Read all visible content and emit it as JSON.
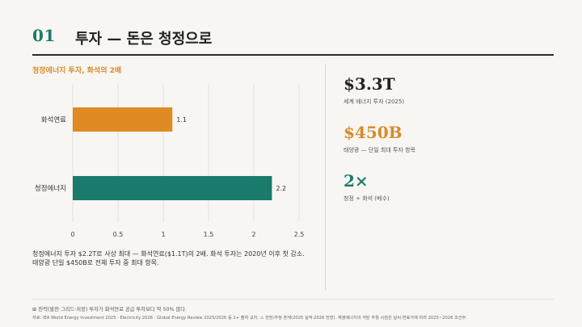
{
  "header": {
    "number": "01",
    "title": "투자 — 돈은 청정으로"
  },
  "chart_data": {
    "type": "bar",
    "orientation": "horizontal",
    "title": "청정에너지 투자, 화석의 2배",
    "categories": [
      "화석연료",
      "청정에너지"
    ],
    "values": [
      1.1,
      2.2
    ],
    "value_labels": [
      "1.1",
      "2.2"
    ],
    "colors": [
      "#e08a23",
      "#1a7a6c"
    ],
    "xlim": [
      0,
      2.5
    ],
    "xticks": [
      0,
      0.5,
      1,
      1.5,
      2,
      2.5
    ],
    "xtick_labels": [
      "0",
      "0.5",
      "1",
      "1.5",
      "2",
      "2.5"
    ],
    "grid": true,
    "legend": "none"
  },
  "caption": [
    "청정에너지 투자 $2.2T로 사상 최대 — 화석연료($1.1T)의 2배. 화석 투자는 2020년 이후 첫 감소.",
    "태양광 단일 $450B로 전체 투자 중 최대 항목."
  ],
  "stats": [
    {
      "value": "$3.3T",
      "label": "세계 에너지 투자 (2025)",
      "color": "#222222"
    },
    {
      "value": "$450B",
      "label": "태양광 — 단일 최대 투자 항목",
      "color": "#d98a2b"
    },
    {
      "value": "2×",
      "label": "청정 ÷ 화석 (배수)",
      "color": "#1d7a6c"
    }
  ],
  "footer": {
    "note": "⊞  전력(발전·그리드·저장) 투자가 화석연료 공급 투자보다 약 50% 많다.",
    "source": "자료: IEA World Energy Investment 2025 · Electricity 2026 · Global Energy Review 2025/2026 등 2+ 출처 교차. ⚠ 전망/추정 혼재(2025 실적·2026 전망). 재생에너지의 석탄 추월 시점은 날씨·연료가에 따라 2025~2026 조건부."
  }
}
